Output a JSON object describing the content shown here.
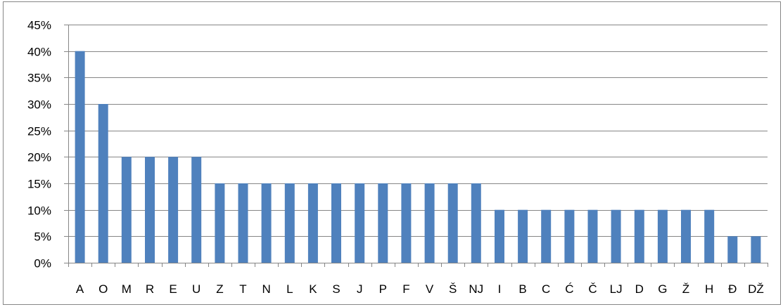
{
  "chart_data": {
    "type": "bar",
    "categories": [
      "A",
      "O",
      "M",
      "R",
      "E",
      "U",
      "Z",
      "T",
      "N",
      "L",
      "K",
      "S",
      "J",
      "P",
      "F",
      "V",
      "Š",
      "NJ",
      "I",
      "B",
      "C",
      "Ć",
      "Č",
      "LJ",
      "D",
      "G",
      "Ž",
      "H",
      "Đ",
      "DŽ"
    ],
    "values": [
      40,
      30,
      20,
      20,
      20,
      20,
      15,
      15,
      15,
      15,
      15,
      15,
      15,
      15,
      15,
      15,
      15,
      15,
      10,
      10,
      10,
      10,
      10,
      10,
      10,
      10,
      10,
      10,
      5,
      5
    ],
    "ylim": [
      0,
      45
    ],
    "yticks": [
      0,
      5,
      10,
      15,
      20,
      25,
      30,
      35,
      40,
      45
    ],
    "ytick_labels": [
      "0%",
      "5%",
      "10%",
      "15%",
      "20%",
      "25%",
      "30%",
      "35%",
      "40%",
      "45%"
    ],
    "title": "",
    "xlabel": "",
    "ylabel": "",
    "grid": true,
    "legend": "none",
    "bar_color": "#4F81BD",
    "grid_color": "#868686"
  }
}
